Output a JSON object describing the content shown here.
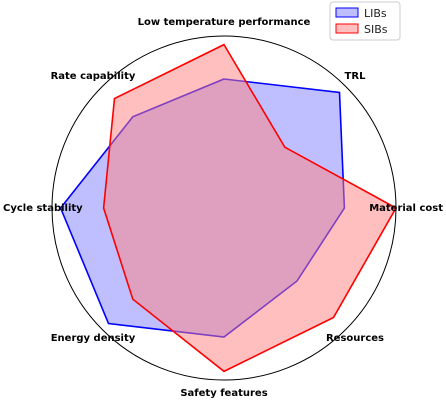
{
  "chart_data": {
    "type": "radar",
    "title": "",
    "axes": [
      "Low temperature performance",
      "TRL",
      "Material cost",
      "Resources",
      "Safety features",
      "Energy density",
      "Cycle stability",
      "Rate capability"
    ],
    "range": [
      0,
      1
    ],
    "grid": false,
    "legend_position": "top-right",
    "series": [
      {
        "name": "LIBs",
        "values": [
          0.75,
          0.95,
          0.7,
          0.6,
          0.75,
          0.95,
          0.95,
          0.75
        ],
        "color": "#0000ff",
        "fill": "#8080ff",
        "fill_opacity": 0.5
      },
      {
        "name": "SIBs",
        "values": [
          0.95,
          0.5,
          1.0,
          0.9,
          0.95,
          0.75,
          0.7,
          0.9
        ],
        "color": "#ff0000",
        "fill": "#ff8080",
        "fill_opacity": 0.5
      }
    ]
  }
}
